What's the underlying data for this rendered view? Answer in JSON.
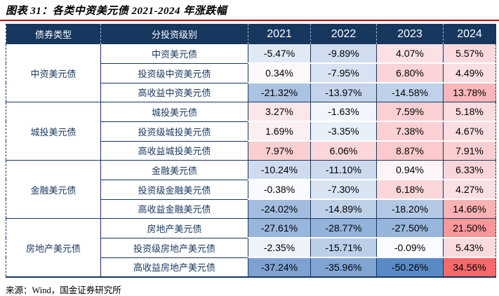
{
  "title": "图表 31：各类中资美元债 2021-2024 年涨跌幅",
  "source": "来源：Wind，国金证券研究所",
  "colors": {
    "header_bg": "#17375E",
    "header_text": "#FFFFFF",
    "border": "#17375E",
    "title_rule": "#C00000",
    "group_text": "#17375E",
    "value_text": "#000000"
  },
  "chart_data": {
    "type": "table",
    "title": "图表 31：各类中资美元债 2021-2024 年涨跌幅",
    "columns": [
      "债券类型",
      "分投资级别",
      "2021",
      "2022",
      "2023",
      "2024"
    ],
    "value_unit": "%",
    "heatmap": {
      "negative_color": "#5A8AC6",
      "neutral_color": "#FCFCFF",
      "positive_color": "#F8696B",
      "note": "3-color scale: most negative = blue, zero = white, most positive = red"
    },
    "groups": [
      {
        "type": "中资美元债",
        "rows": [
          {
            "label": "中资美元债",
            "values": [
              -5.47,
              -9.89,
              4.07,
              5.57
            ]
          },
          {
            "label": "投资级中资美元债",
            "values": [
              0.34,
              -7.95,
              6.8,
              4.49
            ]
          },
          {
            "label": "高收益中资美元债",
            "values": [
              -21.32,
              -13.97,
              -14.58,
              13.78
            ]
          }
        ]
      },
      {
        "type": "城投美元债",
        "rows": [
          {
            "label": "城投美元债",
            "values": [
              3.27,
              -1.63,
              7.59,
              5.18
            ]
          },
          {
            "label": "投资级城投美元债",
            "values": [
              1.69,
              -3.35,
              7.38,
              4.67
            ]
          },
          {
            "label": "高收益城投美元债",
            "values": [
              7.97,
              6.06,
              8.87,
              7.91
            ]
          }
        ]
      },
      {
        "type": "金融美元债",
        "rows": [
          {
            "label": "金融美元债",
            "values": [
              -10.24,
              -11.1,
              0.94,
              6.33
            ]
          },
          {
            "label": "投资级金融美元债",
            "values": [
              -0.38,
              -7.3,
              6.18,
              4.27
            ]
          },
          {
            "label": "高收益金融美元债",
            "values": [
              -24.02,
              -14.89,
              -18.2,
              14.66
            ]
          }
        ]
      },
      {
        "type": "房地产美元债",
        "rows": [
          {
            "label": "房地产美元债",
            "values": [
              -27.61,
              -28.77,
              -27.5,
              21.5
            ]
          },
          {
            "label": "投资级房地产美元债",
            "values": [
              -2.35,
              -15.71,
              -0.09,
              5.43
            ]
          },
          {
            "label": "高收益房地产美元债",
            "values": [
              -37.24,
              -35.96,
              -50.26,
              34.56
            ]
          }
        ]
      }
    ]
  }
}
